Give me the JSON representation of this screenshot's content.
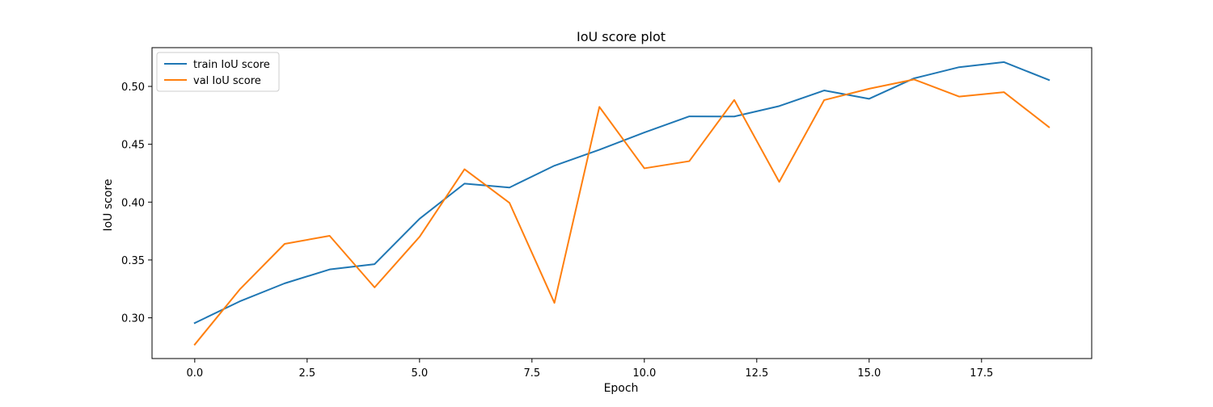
{
  "chart_data": {
    "type": "line",
    "title": "IoU score plot",
    "xlabel": "Epoch",
    "ylabel": "IoU score",
    "xlim": [
      -0.95,
      19.95
    ],
    "ylim": [
      0.2648,
      0.5335
    ],
    "x_ticks": [
      0.0,
      2.5,
      5.0,
      7.5,
      10.0,
      12.5,
      15.0,
      17.5
    ],
    "x_tick_labels": [
      "0.0",
      "2.5",
      "5.0",
      "7.5",
      "10.0",
      "12.5",
      "15.0",
      "17.5"
    ],
    "y_ticks": [
      0.3,
      0.35,
      0.4,
      0.45,
      0.5
    ],
    "y_tick_labels": [
      "0.30",
      "0.35",
      "0.40",
      "0.45",
      "0.50"
    ],
    "grid": false,
    "legend_position": "upper-left",
    "x": [
      0,
      1,
      2,
      3,
      4,
      5,
      6,
      7,
      8,
      9,
      10,
      11,
      12,
      13,
      14,
      15,
      16,
      17,
      18,
      19
    ],
    "series": [
      {
        "name": "train IoU score",
        "color": "#1f77b4",
        "values": [
          0.2955,
          0.3142,
          0.3298,
          0.3418,
          0.3464,
          0.3856,
          0.416,
          0.4126,
          0.4315,
          0.4453,
          0.4602,
          0.4741,
          0.474,
          0.483,
          0.4965,
          0.4893,
          0.507,
          0.5166,
          0.521,
          0.5055
        ]
      },
      {
        "name": "val IoU score",
        "color": "#ff7f0e",
        "values": [
          0.2769,
          0.3245,
          0.3639,
          0.3709,
          0.3263,
          0.37,
          0.4284,
          0.3994,
          0.3129,
          0.4823,
          0.4292,
          0.4354,
          0.4883,
          0.4175,
          0.4882,
          0.498,
          0.506,
          0.4912,
          0.495,
          0.4648
        ]
      }
    ]
  }
}
